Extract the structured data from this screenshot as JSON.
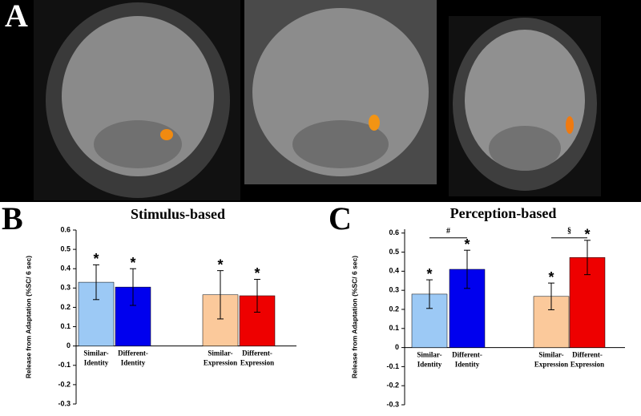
{
  "panel_labels": [
    "A",
    "B",
    "C"
  ],
  "chart_data": [
    {
      "type": "bar",
      "title": "Stimulus-based",
      "y_label": "Release from Adaptation (%SC/ 6 sec)",
      "categories": [
        [
          "Similar-",
          "Identity"
        ],
        [
          "Different-",
          "Identity"
        ],
        [
          "Similar-",
          "Expression"
        ],
        [
          "Different-",
          "Expression"
        ]
      ],
      "values": [
        0.33,
        0.305,
        0.265,
        0.26
      ],
      "errors": [
        0.09,
        0.095,
        0.125,
        0.085
      ],
      "colors": [
        "#9cc9f5",
        "#0000ee",
        "#fbc99b",
        "#ee0000"
      ],
      "markers": [
        "*",
        "*",
        "*",
        "*"
      ],
      "ylim": [
        -0.3,
        0.6
      ],
      "yticks": [
        -0.3,
        -0.2,
        -0.1,
        0,
        0.1,
        0.2,
        0.3,
        0.4,
        0.5,
        0.6
      ]
    },
    {
      "type": "bar",
      "title": "Perception-based",
      "y_label": "Release from Adaptation (%SC/ 6 sec)",
      "categories": [
        [
          "Similar-",
          "Identity"
        ],
        [
          "Different-",
          "Identity"
        ],
        [
          "Similar-",
          "Expression"
        ],
        [
          "Different-",
          "Expression"
        ]
      ],
      "values": [
        0.28,
        0.41,
        0.268,
        0.472
      ],
      "errors": [
        0.075,
        0.1,
        0.07,
        0.09
      ],
      "colors": [
        "#9cc9f5",
        "#0000ee",
        "#fbc99b",
        "#ee0000"
      ],
      "markers": [
        "*",
        "*",
        "*",
        "*"
      ],
      "comparisons": [
        {
          "bars": [
            0,
            1
          ],
          "value": 0.575,
          "label": "#"
        },
        {
          "bars": [
            2,
            3
          ],
          "value": 0.575,
          "label": "§"
        }
      ],
      "ylim": [
        -0.3,
        0.62
      ],
      "yticks": [
        -0.3,
        -0.2,
        -0.1,
        0,
        0.1,
        0.2,
        0.3,
        0.4,
        0.5,
        0.6
      ]
    }
  ]
}
